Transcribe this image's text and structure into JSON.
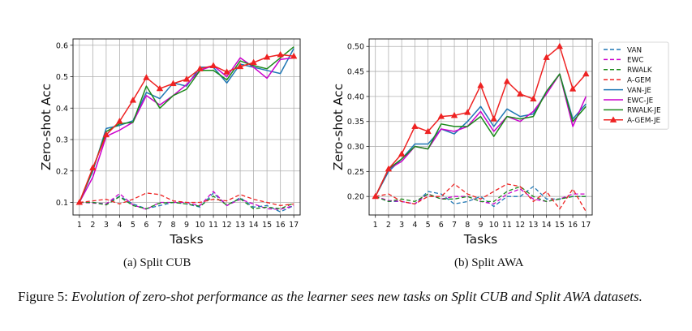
{
  "chart_data": [
    {
      "type": "line",
      "subcaption": "(a) Split CUB",
      "xlabel": "Tasks",
      "ylabel": "Zero-shot Acc",
      "x": [
        1,
        2,
        3,
        4,
        5,
        6,
        7,
        8,
        9,
        10,
        11,
        12,
        13,
        14,
        15,
        16,
        17
      ],
      "ylim": [
        0.06,
        0.62
      ],
      "yticks": [
        0.1,
        0.2,
        0.3,
        0.4,
        0.5,
        0.6
      ],
      "ytick_labels": [
        "0.1",
        "0.2",
        "0.3",
        "0.4",
        "0.5",
        "0.6"
      ],
      "grid": true,
      "series": [
        {
          "name": "VAN",
          "color": "#1f77b4",
          "dash": "dashed",
          "marker": "none",
          "values": [
            0.1,
            0.1,
            0.095,
            0.12,
            0.095,
            0.08,
            0.09,
            0.1,
            0.095,
            0.085,
            0.13,
            0.09,
            0.115,
            0.085,
            0.09,
            0.07,
            0.09
          ]
        },
        {
          "name": "EWC",
          "color": "#cc00cc",
          "dash": "dashed",
          "marker": "none",
          "values": [
            0.1,
            0.098,
            0.095,
            0.128,
            0.092,
            0.078,
            0.1,
            0.1,
            0.1,
            0.09,
            0.135,
            0.09,
            0.11,
            0.095,
            0.08,
            0.078,
            0.09
          ]
        },
        {
          "name": "RWALK",
          "color": "#1b8a1b",
          "dash": "dashed",
          "marker": "none",
          "values": [
            0.1,
            0.1,
            0.092,
            0.118,
            0.09,
            0.08,
            0.098,
            0.1,
            0.095,
            0.088,
            0.12,
            0.092,
            0.112,
            0.08,
            0.085,
            0.08,
            0.098
          ]
        },
        {
          "name": "A-GEM",
          "color": "#ee2222",
          "dash": "dashed",
          "marker": "none",
          "values": [
            0.1,
            0.105,
            0.11,
            0.095,
            0.11,
            0.13,
            0.125,
            0.105,
            0.1,
            0.1,
            0.11,
            0.105,
            0.125,
            0.11,
            0.1,
            0.09,
            0.095
          ]
        },
        {
          "name": "VAN-JE",
          "color": "#1f77b4",
          "dash": "solid",
          "marker": "none",
          "values": [
            0.1,
            0.2,
            0.335,
            0.345,
            0.36,
            0.45,
            0.43,
            0.48,
            0.47,
            0.53,
            0.53,
            0.48,
            0.54,
            0.53,
            0.52,
            0.51,
            0.59
          ]
        },
        {
          "name": "EWC-JE",
          "color": "#cc00cc",
          "dash": "solid",
          "marker": "none",
          "values": [
            0.1,
            0.18,
            0.31,
            0.33,
            0.355,
            0.44,
            0.41,
            0.44,
            0.475,
            0.52,
            0.535,
            0.5,
            0.56,
            0.53,
            0.495,
            0.555,
            0.56
          ]
        },
        {
          "name": "RWALK-JE",
          "color": "#1b8a1b",
          "dash": "solid",
          "marker": "none",
          "values": [
            0.1,
            0.205,
            0.325,
            0.35,
            0.355,
            0.47,
            0.4,
            0.44,
            0.46,
            0.52,
            0.52,
            0.49,
            0.55,
            0.535,
            0.525,
            0.56,
            0.595
          ]
        },
        {
          "name": "A-GEM-JE",
          "color": "#ee2222",
          "dash": "solid",
          "marker": "triangle",
          "values": [
            0.1,
            0.21,
            0.315,
            0.358,
            0.425,
            0.497,
            0.462,
            0.478,
            0.492,
            0.525,
            0.535,
            0.515,
            0.532,
            0.545,
            0.562,
            0.57,
            0.565
          ]
        }
      ]
    },
    {
      "type": "line",
      "subcaption": "(b) Split AWA",
      "xlabel": "Tasks",
      "ylabel": "Zero-shot Acc",
      "x": [
        1,
        2,
        3,
        4,
        5,
        6,
        7,
        8,
        9,
        10,
        11,
        12,
        13,
        14,
        15,
        16,
        17
      ],
      "ylim": [
        0.163,
        0.515
      ],
      "yticks": [
        0.2,
        0.25,
        0.3,
        0.35,
        0.4,
        0.45,
        0.5
      ],
      "ytick_labels": [
        "0.20",
        "0.25",
        "0.30",
        "0.35",
        "0.40",
        "0.45",
        "0.50"
      ],
      "grid": true,
      "series": [
        {
          "name": "VAN",
          "color": "#1f77b4",
          "dash": "dashed",
          "marker": "none",
          "values": [
            0.2,
            0.19,
            0.19,
            0.185,
            0.21,
            0.205,
            0.185,
            0.19,
            0.2,
            0.18,
            0.2,
            0.2,
            0.22,
            0.195,
            0.195,
            0.2,
            0.2
          ]
        },
        {
          "name": "EWC",
          "color": "#cc00cc",
          "dash": "dashed",
          "marker": "none",
          "values": [
            0.2,
            0.192,
            0.19,
            0.185,
            0.205,
            0.195,
            0.2,
            0.2,
            0.19,
            0.185,
            0.205,
            0.215,
            0.195,
            0.19,
            0.195,
            0.205,
            0.205
          ]
        },
        {
          "name": "RWALK",
          "color": "#1b8a1b",
          "dash": "dashed",
          "marker": "none",
          "values": [
            0.2,
            0.19,
            0.195,
            0.19,
            0.205,
            0.195,
            0.195,
            0.2,
            0.19,
            0.19,
            0.21,
            0.22,
            0.2,
            0.19,
            0.195,
            0.2,
            0.2
          ]
        },
        {
          "name": "A-GEM",
          "color": "#ee2222",
          "dash": "dashed",
          "marker": "none",
          "values": [
            0.2,
            0.205,
            0.19,
            0.185,
            0.2,
            0.2,
            0.225,
            0.205,
            0.195,
            0.21,
            0.225,
            0.22,
            0.19,
            0.21,
            0.175,
            0.215,
            0.17
          ]
        },
        {
          "name": "VAN-JE",
          "color": "#1f77b4",
          "dash": "solid",
          "marker": "none",
          "values": [
            0.2,
            0.25,
            0.275,
            0.305,
            0.305,
            0.335,
            0.325,
            0.35,
            0.38,
            0.34,
            0.375,
            0.36,
            0.365,
            0.41,
            0.445,
            0.355,
            0.385
          ]
        },
        {
          "name": "EWC-JE",
          "color": "#cc00cc",
          "dash": "solid",
          "marker": "none",
          "values": [
            0.2,
            0.255,
            0.27,
            0.3,
            0.295,
            0.335,
            0.33,
            0.34,
            0.37,
            0.33,
            0.36,
            0.35,
            0.37,
            0.405,
            0.445,
            0.34,
            0.4
          ]
        },
        {
          "name": "RWALK-JE",
          "color": "#1b8a1b",
          "dash": "solid",
          "marker": "none",
          "values": [
            0.2,
            0.255,
            0.275,
            0.3,
            0.295,
            0.345,
            0.34,
            0.34,
            0.36,
            0.32,
            0.36,
            0.355,
            0.36,
            0.41,
            0.445,
            0.35,
            0.38
          ]
        },
        {
          "name": "A-GEM-JE",
          "color": "#ee2222",
          "dash": "solid",
          "marker": "triangle",
          "values": [
            0.2,
            0.255,
            0.285,
            0.34,
            0.33,
            0.36,
            0.362,
            0.368,
            0.422,
            0.355,
            0.43,
            0.405,
            0.395,
            0.478,
            0.5,
            0.415,
            0.445
          ]
        }
      ]
    }
  ],
  "caption": {
    "label": "Figure 5:",
    "text": "Evolution of zero-shot performance as the learner sees new tasks on Split CUB and Split AWA datasets."
  }
}
